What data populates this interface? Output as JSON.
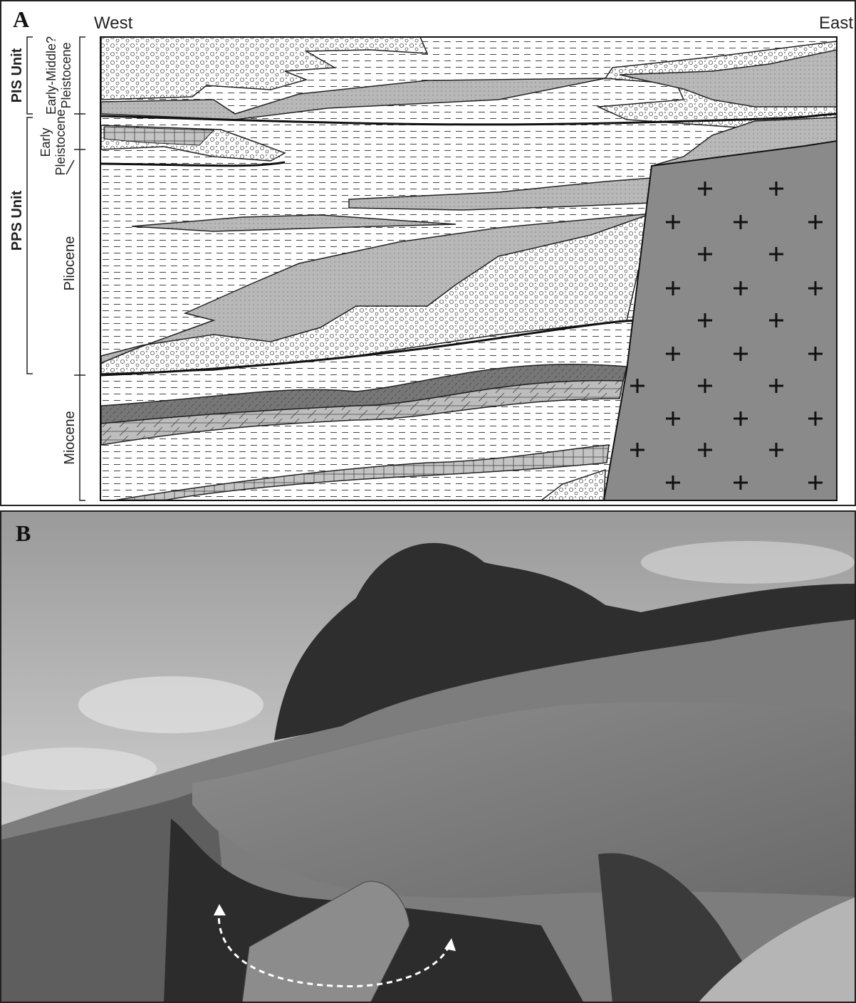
{
  "panel_a": {
    "label": "A",
    "west": "West",
    "east": "East",
    "units": [
      "PIS Unit",
      "PPS Unit"
    ],
    "stages": [
      {
        "lines": [
          "Early-Middle?",
          "Pleistocene"
        ]
      },
      {
        "lines": [
          "Early",
          "Pleistocene"
        ]
      },
      {
        "lines": [
          "Pliocene"
        ]
      },
      {
        "lines": [
          "Miocene"
        ]
      }
    ]
  },
  "panel_b": {
    "label": "B"
  }
}
